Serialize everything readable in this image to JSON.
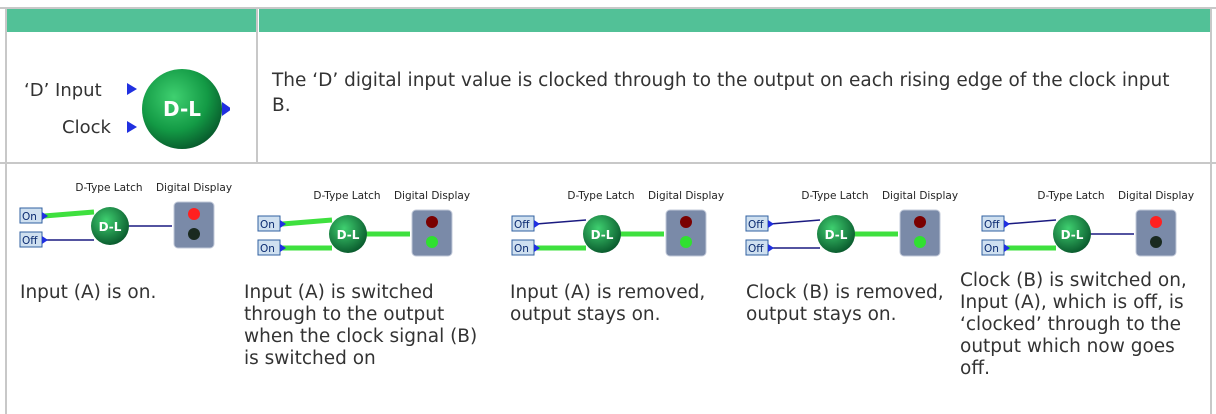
{
  "symbol": {
    "inputs": [
      "‘D’ Input",
      "Clock"
    ],
    "label": "D-L"
  },
  "description": "The ‘D’ digital input value is clocked through to the output on each rising edge of the clock input B.",
  "examples": [
    {
      "latch_title": "D-Type Latch",
      "display_title": "Digital Display",
      "inputs": [
        "On",
        "Off"
      ],
      "label": "D-L",
      "caption": "Input (A) is on."
    },
    {
      "latch_title": "D-Type Latch",
      "display_title": "Digital Display",
      "inputs": [
        "On",
        "On"
      ],
      "label": "D-L",
      "caption": "Input (A) is switched through to the output when the clock signal (B) is switched on"
    },
    {
      "latch_title": "D-Type Latch",
      "display_title": "Digital Display",
      "inputs": [
        "Off",
        "On"
      ],
      "label": "D-L",
      "caption": "Input (A) is removed, output stays on."
    },
    {
      "latch_title": "D-Type Latch",
      "display_title": "Digital Display",
      "inputs": [
        "Off",
        "Off"
      ],
      "label": "D-L",
      "caption": "Clock (B) is removed, output stays on."
    },
    {
      "latch_title": "D-Type Latch",
      "display_title": "Digital Display",
      "inputs": [
        "Off",
        "On"
      ],
      "label": "D-L",
      "caption": "Clock (B) is switched on, Input (A), which is off, is ‘clocked’ through to the output which now goes off."
    }
  ]
}
